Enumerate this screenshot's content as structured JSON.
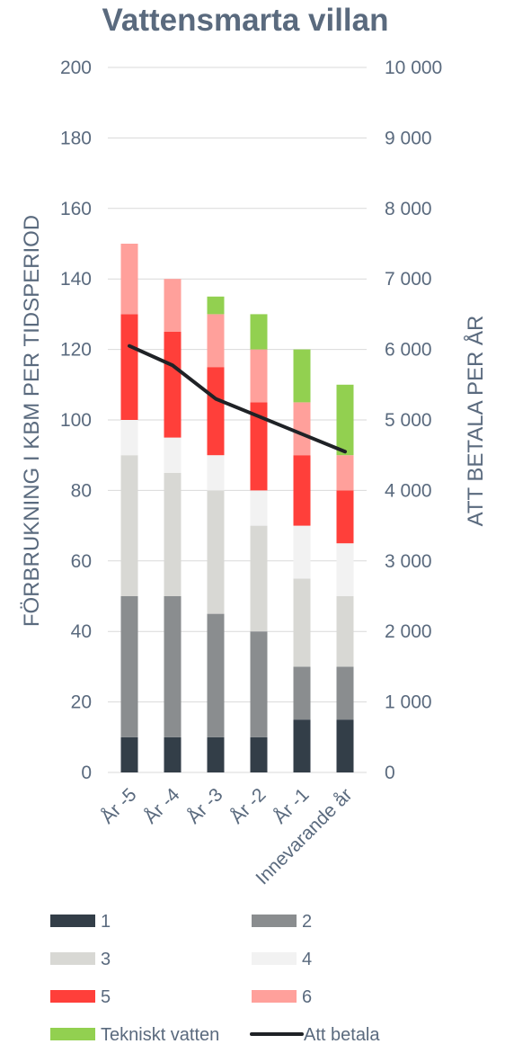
{
  "chart_data": {
    "type": "bar",
    "stacked": true,
    "title": "Vattensmarta villan",
    "categories": [
      "År -5",
      "År -4",
      "År -3",
      "År -2",
      "År -1",
      "Innevarande år"
    ],
    "series": [
      {
        "name": "1",
        "color": "#333e48",
        "values": [
          10,
          10,
          10,
          10,
          15,
          15
        ]
      },
      {
        "name": "2",
        "color": "#8a8d8f",
        "values": [
          40,
          40,
          35,
          30,
          15,
          15
        ]
      },
      {
        "name": "3",
        "color": "#d8d8d4",
        "values": [
          40,
          35,
          35,
          30,
          25,
          20
        ]
      },
      {
        "name": "4",
        "color": "#f2f2f2",
        "values": [
          10,
          10,
          10,
          10,
          15,
          15
        ]
      },
      {
        "name": "5",
        "color": "#ff3f3a",
        "values": [
          30,
          30,
          25,
          25,
          20,
          15
        ]
      },
      {
        "name": "6",
        "color": "#ffa09b",
        "values": [
          20,
          15,
          15,
          15,
          15,
          10
        ]
      },
      {
        "name": "Tekniskt vatten",
        "color": "#92d050",
        "values": [
          0,
          0,
          5,
          10,
          15,
          20
        ]
      }
    ],
    "line_series": {
      "name": "Att betala",
      "color": "#1f2226",
      "axis": "right",
      "values": [
        6050,
        5775,
        5300,
        5050,
        4800,
        4550
      ]
    },
    "ylabel": "FÖRBRUKNING I KBM PER TIDSPERIOD",
    "y2label": "ATT BETALA PER ÅR",
    "ylim": [
      0,
      200
    ],
    "y2lim": [
      0,
      10000
    ],
    "yticks": [
      "0",
      "20",
      "40",
      "60",
      "80",
      "100",
      "120",
      "140",
      "160",
      "180",
      "200"
    ],
    "y2ticks": [
      "0",
      "1 000",
      "2 000",
      "3 000",
      "4 000",
      "5 000",
      "6 000",
      "7 000",
      "8 000",
      "9 000",
      "10 000"
    ],
    "grid": true,
    "legend_position": "bottom"
  }
}
